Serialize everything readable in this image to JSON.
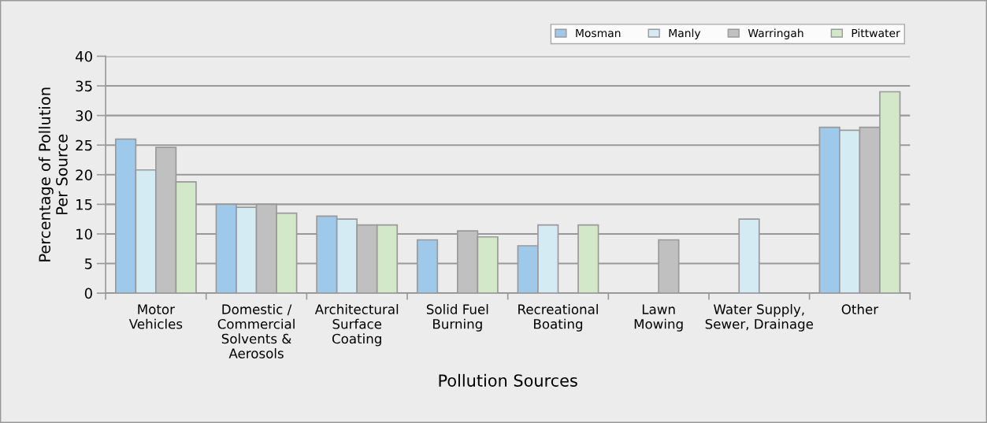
{
  "chart_data": {
    "type": "bar",
    "xlabel": "Pollution Sources",
    "ylabel": "Percentage of Pollution\nPer Source",
    "categories": [
      "Motor\nVehicles",
      "Domestic /\nCommercial\nSolvents &\nAerosols",
      "Architectural\nSurface\nCoating",
      "Solid Fuel\nBurning",
      "Recreational\nBoating",
      "Lawn\nMowing",
      "Water Supply,\nSewer, Drainage",
      "Other"
    ],
    "series": [
      {
        "name": "Mosman",
        "color": "#9fc9ea",
        "values": [
          26,
          15,
          13,
          9,
          8,
          null,
          null,
          28
        ]
      },
      {
        "name": "Manly",
        "color": "#d4ebf3",
        "values": [
          20.8,
          14.5,
          12.5,
          null,
          11.5,
          null,
          12.5,
          27.5
        ]
      },
      {
        "name": "Warringah",
        "color": "#c0c0c0",
        "values": [
          24.6,
          15,
          11.5,
          10.5,
          null,
          9,
          null,
          28
        ]
      },
      {
        "name": "Pittwater",
        "color": "#d2e8c8",
        "values": [
          18.8,
          13.5,
          11.5,
          9.5,
          11.5,
          null,
          null,
          34
        ]
      }
    ],
    "ylim": [
      0,
      40
    ],
    "yticks": [
      0,
      5,
      10,
      15,
      20,
      25,
      30,
      35,
      40
    ],
    "grid": "y",
    "legend": "top right"
  }
}
